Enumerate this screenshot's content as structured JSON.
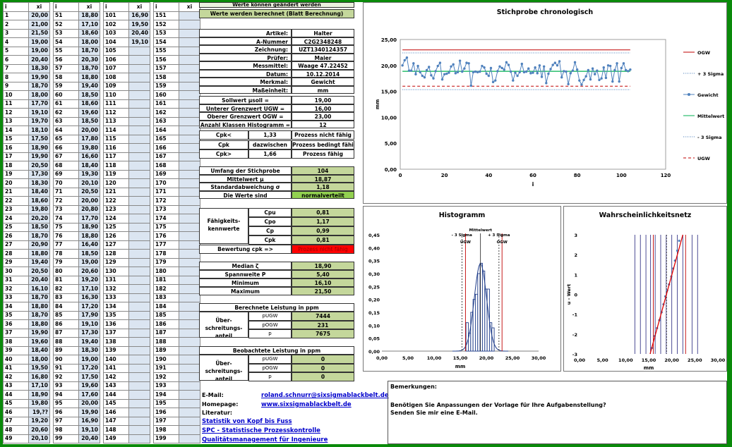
{
  "header": {
    "i": "i",
    "xi": "xi"
  },
  "col1": [
    "20,00",
    "21,00",
    "21,50",
    "19,00",
    "19,00",
    "20,40",
    "18,30",
    "19,90",
    "18,70",
    "18,00",
    "17,70",
    "19,10",
    "19,70",
    "18,10",
    "17,50",
    "18,90",
    "19,90",
    "20,50",
    "17,30",
    "18,30",
    "18,40",
    "18,60",
    "19,80",
    "20,20",
    "18,50",
    "18,70",
    "20,90",
    "18,80",
    "19,40",
    "20,50",
    "20,40",
    "16,10",
    "18,70",
    "18,80",
    "18,70",
    "18,80",
    "19,90",
    "19,60",
    "18,40",
    "18,00",
    "19,50",
    "16,80",
    "17,10",
    "18,90",
    "19,80",
    "19,??",
    "19,20",
    "20,60",
    "20,10"
  ],
  "col2": [
    "18,80",
    "17,10",
    "18,60",
    "18,00",
    "18,70",
    "20,30",
    "18,70",
    "18,80",
    "19,40",
    "18,50",
    "18,60",
    "19,60",
    "18,50",
    "20,00",
    "17,80",
    "19,80",
    "16,60",
    "18,40",
    "19,30",
    "20,10",
    "20,50",
    "20,00",
    "20,80",
    "17,70",
    "18,90",
    "18,80",
    "16,40",
    "18,50",
    "19,00",
    "20,60",
    "19,20",
    "17,10",
    "16,30",
    "17,20",
    "17,90",
    "19,10",
    "17,30",
    "19,40",
    "18,30",
    "19,00",
    "17,20",
    "17,50",
    "19,60",
    "17,60",
    "20,00",
    "19,90",
    "16,90",
    "19,10",
    "20,40"
  ],
  "col3": [
    "16,90",
    "19,50",
    "20,40",
    "19,10"
  ],
  "notice1": "Werte können geändert werden",
  "notice2": "Werte werden berechnet (Blatt Berechnung)",
  "info": [
    {
      "label": "Artikel:",
      "value": "Halter"
    },
    {
      "label": "A-Nummer",
      "value": "C2G2348248"
    },
    {
      "label": "Zeichnung:",
      "value": "UZT1340124357"
    },
    {
      "label": "Prüfer:",
      "value": "Maier"
    },
    {
      "label": "Messmittel:",
      "value": "Waage 47.22452"
    },
    {
      "label": "Datum:",
      "value": "10.12.2014"
    },
    {
      "label": "Merkmal:",
      "value": "Gewicht"
    },
    {
      "label": "Maßeinheit:",
      "value": "mm"
    }
  ],
  "limits": [
    {
      "label": "Sollwert μsoll =",
      "value": "19,00"
    },
    {
      "label": "Unterer Grenzwert UGW =",
      "value": "16,00"
    },
    {
      "label": "Oberer Grenzwert OGW =",
      "value": "23,00"
    },
    {
      "label": "Anzahl Klassen Histogramm =",
      "value": "12"
    }
  ],
  "cpk": [
    {
      "label": "Cpk<",
      "value": "1,33",
      "status": "Prozess nicht fähig"
    },
    {
      "label": "Cpk",
      "value": "dazwischen",
      "status": "Prozess bedingt fähig"
    },
    {
      "label": "Cpk>",
      "value": "1,66",
      "status": "Prozess fähig"
    }
  ],
  "stats": [
    {
      "label": "Umfang der Stichprobe",
      "value": "104"
    },
    {
      "label": "Mittelwert μ",
      "value": "18,87"
    },
    {
      "label": "Standardabweichung σ",
      "value": "1,18"
    },
    {
      "label": "Die Werte sind",
      "value": "normalverteilt"
    }
  ],
  "capability": {
    "title": "Fähigkeits-kennwerte",
    "rows": [
      {
        "label": "Cpu",
        "value": "0,81"
      },
      {
        "label": "Cpo",
        "value": "1,17"
      },
      {
        "label": "Cp",
        "value": "0,99"
      },
      {
        "label": "Cpk",
        "value": "0,81"
      }
    ],
    "bewertung_label": "Bewertung cpk =>",
    "bewertung_value": "Prozess nicht fähig"
  },
  "median": [
    {
      "label": "Median ζ",
      "value": "18,90"
    },
    {
      "label": "Spannweite P",
      "value": "5,40"
    },
    {
      "label": "Minimum",
      "value": "16,10"
    },
    {
      "label": "Maximum",
      "value": "21,50"
    }
  ],
  "berechnet": {
    "title": "Berechnete Leistung in ppm",
    "side": "Über- schreitungs-anteil",
    "rows": [
      {
        "label": "pUGW",
        "value": "7444"
      },
      {
        "label": "pOGW",
        "value": "231"
      },
      {
        "label": "p",
        "value": "7675"
      }
    ]
  },
  "beobachtet": {
    "title": "Beobachtete Leistung in ppm",
    "side": "Über- schreitungs-anteil",
    "rows": [
      {
        "label": "pUGW",
        "value": "0"
      },
      {
        "label": "pOGW",
        "value": "0"
      },
      {
        "label": "p",
        "value": "0"
      }
    ]
  },
  "contact": {
    "email_label": "E-Mail:",
    "email": "roland.schnurr@sixsigmablackbelt.de",
    "homepage_label": "Homepage:",
    "homepage": "www.sixsigmablackbelt.de",
    "literatur_label": "Literatur:",
    "books": [
      "Statistik von Kopf bis Fuss",
      "SPC - Statistische Prozesskontrolle",
      "Qualitätsmanagement für Ingenieure"
    ]
  },
  "remarks": {
    "title": "Bemerkungen:",
    "line1": "Benötigen Sie Anpassungen der Vorlage für Ihre Aufgabenstellung?",
    "line2": "Senden Sie mir eine E-Mail."
  },
  "colors": {
    "green": "#c4d79b",
    "blue_cell": "#dbe5f1",
    "red": "#ff0000",
    "series": "#4f81bd"
  },
  "chart_data": [
    {
      "type": "line",
      "title": "Stichprobe chronologisch",
      "xlabel": "i",
      "ylabel": "mm",
      "xlim": [
        0,
        120
      ],
      "ylim": [
        0,
        25
      ],
      "xticks": [
        "0",
        "20",
        "40",
        "60",
        "80",
        "100",
        "120"
      ],
      "yticks": [
        "0,00",
        "5,00",
        "10,00",
        "15,00",
        "20,00",
        "25,00"
      ],
      "legend": [
        "OGW",
        "+ 3 Sigma",
        "Gewicht",
        "Mittelwert",
        "- 3 Sigma",
        "UGW"
      ],
      "lines": {
        "OGW": 23.0,
        "plus3s": 22.41,
        "mean": 18.87,
        "minus3s": 15.33,
        "UGW": 16.0
      },
      "series": [
        {
          "name": "Gewicht",
          "values": [
            20.0,
            21.0,
            21.5,
            19.0,
            19.0,
            20.4,
            18.3,
            19.9,
            18.7,
            18.0,
            17.7,
            19.1,
            19.7,
            18.1,
            17.5,
            18.9,
            19.9,
            20.5,
            17.3,
            18.3,
            18.4,
            18.6,
            19.8,
            20.2,
            18.5,
            18.7,
            20.9,
            18.8,
            19.4,
            20.5,
            20.4,
            16.1,
            18.7,
            18.8,
            18.7,
            18.8,
            19.9,
            19.6,
            18.4,
            18.0,
            19.5,
            16.8,
            17.1,
            18.9,
            19.8,
            19.5,
            19.2,
            20.6,
            20.1,
            18.8,
            17.1,
            18.6,
            18.0,
            18.7,
            20.3,
            18.7,
            18.8,
            19.4,
            18.5,
            18.6,
            19.6,
            18.5,
            20.0,
            17.8,
            19.8,
            16.6,
            18.4,
            19.3,
            20.1,
            20.5,
            20.0,
            20.8,
            17.7,
            18.9,
            18.8,
            16.4,
            18.5,
            19.0,
            20.6,
            19.2,
            17.1,
            16.3,
            17.2,
            17.9,
            19.1,
            17.3,
            19.4,
            18.3,
            19.0,
            17.2,
            17.5,
            19.6,
            17.6,
            20.0,
            19.9,
            16.9,
            19.1,
            20.4,
            16.9,
            19.5,
            20.4,
            19.1,
            18.9,
            19.2
          ]
        }
      ]
    },
    {
      "type": "bar",
      "title": "Histogramm",
      "xlabel": "mm",
      "xlim": [
        0,
        30
      ],
      "ylim": [
        0,
        0.45
      ],
      "xticks": [
        "0,00",
        "5,00",
        "10,00",
        "15,00",
        "20,00",
        "25,00",
        "30,00"
      ],
      "yticks": [
        "0,00",
        "0,05",
        "0,10",
        "0,15",
        "0,20",
        "0,25",
        "0,30",
        "0,35",
        "0,40",
        "0,45"
      ],
      "annotations": [
        "- 3 Sigma",
        "UGW",
        "Mittelwert",
        "+ 3 Sigma",
        "OGW"
      ],
      "bins": [
        16.1,
        16.55,
        17.0,
        17.45,
        17.9,
        18.35,
        18.8,
        19.25,
        19.7,
        20.15,
        20.6,
        21.05
      ],
      "values": [
        0.11,
        0.07,
        0.15,
        0.2,
        0.22,
        0.3,
        0.34,
        0.31,
        0.24,
        0.24,
        0.11,
        0.09
      ],
      "mean": 18.87,
      "sigma": 1.18
    },
    {
      "type": "scatter",
      "title": "Wahrscheinlichkeitsnetz",
      "xlabel": "mm",
      "ylabel": "u - Wert",
      "xlim": [
        0,
        30
      ],
      "ylim": [
        -3,
        3
      ],
      "xticks": [
        "0,00",
        "5,00",
        "10,00",
        "15,00",
        "20,00",
        "25,00",
        "30,00"
      ],
      "yticks": [
        "-3",
        "-2",
        "-1",
        "0",
        "1",
        "2",
        "3"
      ]
    }
  ]
}
